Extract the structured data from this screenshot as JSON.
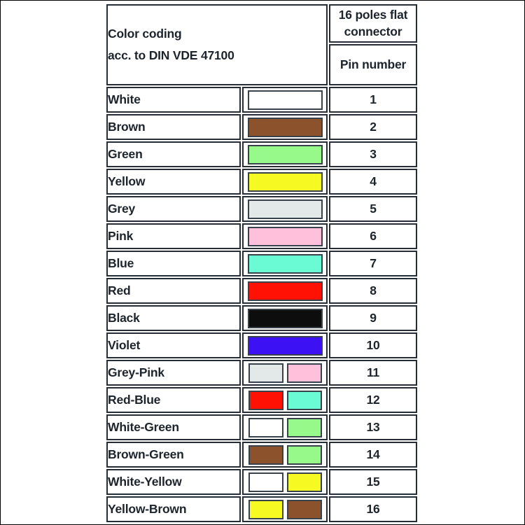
{
  "table": {
    "header": {
      "title_line1": "Color coding",
      "title_line2": "acc. to DIN VDE 47100",
      "connector_label": "16 poles flat connector",
      "pin_label": "Pin number"
    },
    "rows": [
      {
        "label": "White",
        "pin": "1",
        "swatches": [
          "#ffffff"
        ]
      },
      {
        "label": "Brown",
        "pin": "2",
        "swatches": [
          "#8b522b"
        ]
      },
      {
        "label": "Green",
        "pin": "3",
        "swatches": [
          "#97f98a"
        ]
      },
      {
        "label": "Yellow",
        "pin": "4",
        "swatches": [
          "#f6f922"
        ]
      },
      {
        "label": "Grey",
        "pin": "5",
        "swatches": [
          "#e2e9e8"
        ]
      },
      {
        "label": "Pink",
        "pin": "6",
        "swatches": [
          "#ffc0dc"
        ]
      },
      {
        "label": "Blue",
        "pin": "7",
        "swatches": [
          "#6bfbd4"
        ]
      },
      {
        "label": "Red",
        "pin": "8",
        "swatches": [
          "#ff1103"
        ]
      },
      {
        "label": "Black",
        "pin": "9",
        "swatches": [
          "#0d0d0d"
        ]
      },
      {
        "label": "Violet",
        "pin": "10",
        "swatches": [
          "#3c11f4"
        ]
      },
      {
        "label": "Grey-Pink",
        "pin": "11",
        "swatches": [
          "#e2e9e8",
          "#ffc0dc"
        ]
      },
      {
        "label": "Red-Blue",
        "pin": "12",
        "swatches": [
          "#ff1103",
          "#6bfbd4"
        ]
      },
      {
        "label": "White-Green",
        "pin": "13",
        "swatches": [
          "#ffffff",
          "#97f98a"
        ]
      },
      {
        "label": "Brown-Green",
        "pin": "14",
        "swatches": [
          "#8b522b",
          "#97f98a"
        ]
      },
      {
        "label": "White-Yellow",
        "pin": "15",
        "swatches": [
          "#ffffff",
          "#f6f922"
        ]
      },
      {
        "label": "Yellow-Brown",
        "pin": "16",
        "swatches": [
          "#f6f922",
          "#8b522b"
        ]
      }
    ]
  }
}
